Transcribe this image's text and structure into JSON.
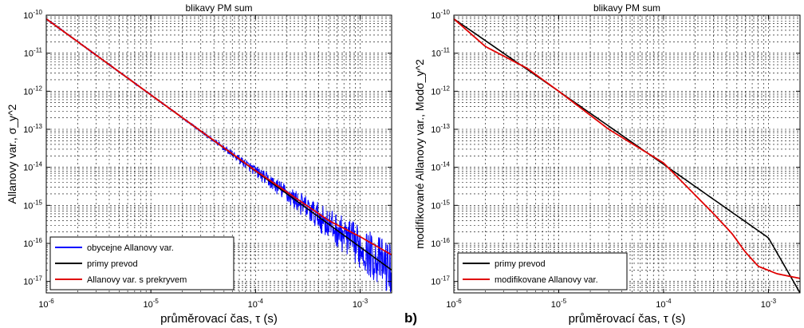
{
  "panel_tag": "b)",
  "chart_data": [
    {
      "type": "line",
      "title": "blikavy PM sum",
      "xlabel": "průměrovací čas,  τ  (s)",
      "ylabel": "Allanovy var.,  σ_y^2",
      "x_scale": "log",
      "y_scale": "log",
      "xlim": [
        1e-06,
        0.002
      ],
      "ylim": [
        5e-18,
        1e-10
      ],
      "x_ticks": [
        1e-06,
        1e-05,
        0.0001,
        0.001
      ],
      "x_tick_labels": [
        "10-6",
        "10-5",
        "10-4",
        "10-3"
      ],
      "y_ticks": [
        1e-17,
        1e-16,
        1e-15,
        1e-14,
        1e-13,
        1e-12,
        1e-11,
        1e-10
      ],
      "y_tick_labels": [
        "10-17",
        "10-16",
        "10-15",
        "10-14",
        "10-13",
        "10-12",
        "10-11",
        "10-10"
      ],
      "grid": true,
      "legend_position": "bottom-left",
      "series": [
        {
          "name": "obycejne Allanovy var.",
          "color": "#0000ff",
          "style": "noisy",
          "x": [
            1e-06,
            1e-05,
            5e-05,
            0.0001,
            0.0003,
            0.001,
            0.002
          ],
          "y": [
            8e-11,
            8e-13,
            3.2e-14,
            8e-15,
            9e-16,
            8e-17,
            2e-17
          ]
        },
        {
          "name": "primy prevod",
          "color": "#000000",
          "style": "line",
          "x": [
            1e-06,
            0.002
          ],
          "y": [
            8e-11,
            2e-17
          ]
        },
        {
          "name": "Allanovy var. s prekryvem",
          "color": "#e00000",
          "style": "line",
          "x": [
            1e-06,
            1e-05,
            0.0001,
            0.0005,
            0.001,
            0.002
          ],
          "y": [
            8e-11,
            8e-13,
            8.2e-15,
            4e-16,
            1.5e-16,
            5e-17
          ]
        }
      ]
    },
    {
      "type": "line",
      "title": "blikavy PM sum",
      "xlabel": "průměrovací čas,  τ  (s)",
      "ylabel": "modifikované Allanovy var.,  Modσ_y^2",
      "x_scale": "log",
      "y_scale": "log",
      "xlim": [
        1e-06,
        0.002
      ],
      "ylim": [
        5e-18,
        1e-10
      ],
      "x_ticks": [
        1e-06,
        1e-05,
        0.0001,
        0.001
      ],
      "x_tick_labels": [
        "10-6",
        "10-5",
        "10-4",
        "10-3"
      ],
      "y_ticks": [
        1e-17,
        1e-16,
        1e-15,
        1e-14,
        1e-13,
        1e-12,
        1e-11,
        1e-10
      ],
      "y_tick_labels": [
        "10-17",
        "10-16",
        "10-15",
        "10-14",
        "10-13",
        "10-12",
        "10-11",
        "10-10"
      ],
      "grid": true,
      "legend_position": "bottom-left",
      "series": [
        {
          "name": "primy prevod",
          "color": "#000000",
          "style": "line",
          "x": [
            1e-06,
            1e-05,
            0.0001,
            0.001,
            0.002
          ],
          "y": [
            8e-11,
            1e-12,
            1.2e-14,
            1.4e-16,
            5e-18
          ]
        },
        {
          "name": "modifikovane Allanovy var.",
          "color": "#e00000",
          "style": "line",
          "x": [
            1e-06,
            2e-06,
            5e-06,
            1e-05,
            3e-05,
            0.0001,
            0.0003,
            0.00045,
            0.0006,
            0.0008,
            0.0012,
            0.002
          ],
          "y": [
            8e-11,
            1.5e-11,
            4e-12,
            1e-12,
            1e-13,
            1.3e-14,
            6e-16,
            1.8e-16,
            6e-17,
            2.5e-17,
            1.6e-17,
            1.2e-17
          ]
        }
      ]
    }
  ]
}
